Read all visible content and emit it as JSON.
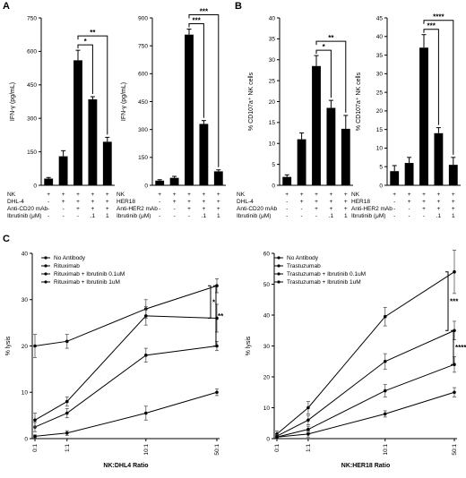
{
  "panel_labels": {
    "a": "A",
    "b": "B",
    "c": "C"
  },
  "chart_data": [
    {
      "id": "A1",
      "type": "bar",
      "ylabel": "IFN-γ (pg/mL)",
      "ylim": [
        0,
        750
      ],
      "yticks": [
        0,
        150,
        300,
        450,
        600,
        750
      ],
      "values": [
        30,
        130,
        560,
        385,
        195
      ],
      "errors": [
        5,
        25,
        45,
        12,
        20
      ],
      "conditions": [
        {
          "label": "NK",
          "marks": [
            "+",
            "+",
            "+",
            "+",
            "+"
          ]
        },
        {
          "label": "DHL-4",
          "marks": [
            "-",
            "+",
            "+",
            "+",
            "+"
          ]
        },
        {
          "label": "Anti-CD20 mAb",
          "marks": [
            "-",
            "-",
            "+",
            "+",
            "+"
          ]
        },
        {
          "label": "Ibrutinib (μM)",
          "marks": [
            "-",
            "-",
            "-",
            ".1",
            "1"
          ]
        }
      ],
      "significance": [
        {
          "from": 2,
          "to": 3,
          "text": "*"
        },
        {
          "from": 2,
          "to": 4,
          "text": "**"
        }
      ]
    },
    {
      "id": "A2",
      "type": "bar",
      "ylabel": "IFN-γ (pg/mL)",
      "ylim": [
        0,
        900
      ],
      "yticks": [
        0,
        150,
        300,
        450,
        600,
        750,
        900
      ],
      "values": [
        25,
        40,
        810,
        330,
        75
      ],
      "errors": [
        5,
        8,
        30,
        18,
        8
      ],
      "conditions": [
        {
          "label": "NK",
          "marks": [
            "+",
            "+",
            "+",
            "+",
            "+"
          ]
        },
        {
          "label": "HER18",
          "marks": [
            "-",
            "+",
            "+",
            "+",
            "+"
          ]
        },
        {
          "label": "Anti-HER2 mAb",
          "marks": [
            "-",
            "-",
            "+",
            "+",
            "+"
          ]
        },
        {
          "label": "Ibrutinib (μM)",
          "marks": [
            "-",
            "-",
            "-",
            ".1",
            "1"
          ]
        }
      ],
      "significance": [
        {
          "from": 2,
          "to": 3,
          "text": "***"
        },
        {
          "from": 2,
          "to": 4,
          "text": "***"
        }
      ]
    },
    {
      "id": "B1",
      "type": "bar",
      "ylabel": "% CD107a⁺ NK cells",
      "ylim": [
        0,
        40
      ],
      "yticks": [
        0,
        5,
        10,
        15,
        20,
        25,
        30,
        35,
        40
      ],
      "values": [
        2,
        11,
        28.5,
        18.5,
        13.5
      ],
      "errors": [
        0.5,
        1.5,
        2.5,
        1.8,
        3.2
      ],
      "conditions": [
        {
          "label": "NK",
          "marks": [
            "+",
            "+",
            "+",
            "+",
            "+"
          ]
        },
        {
          "label": "DHL-4",
          "marks": [
            "-",
            "+",
            "+",
            "+",
            "+"
          ]
        },
        {
          "label": "Anti-CD20 mAb",
          "marks": [
            "-",
            "-",
            "+",
            "+",
            "+"
          ]
        },
        {
          "label": "Ibrutinib (μM)",
          "marks": [
            "-",
            "-",
            "-",
            ".1",
            "1"
          ]
        }
      ],
      "significance": [
        {
          "from": 2,
          "to": 3,
          "text": "*"
        },
        {
          "from": 2,
          "to": 4,
          "text": "**"
        }
      ]
    },
    {
      "id": "B2",
      "type": "bar",
      "ylabel": "% CD107a⁺ NK cells",
      "ylim": [
        0,
        45
      ],
      "yticks": [
        0,
        5,
        10,
        15,
        20,
        25,
        30,
        35,
        40,
        45
      ],
      "values": [
        3.8,
        6,
        37,
        14,
        5.5
      ],
      "errors": [
        1.5,
        1.5,
        3.5,
        1.5,
        2
      ],
      "conditions": [
        {
          "label": "NK",
          "marks": [
            "+",
            "+",
            "+",
            "+",
            "+"
          ]
        },
        {
          "label": "HER18",
          "marks": [
            "-",
            "+",
            "+",
            "+",
            "+"
          ]
        },
        {
          "label": "Anti-HER2 mAb",
          "marks": [
            "-",
            "-",
            "+",
            "+",
            "+"
          ]
        },
        {
          "label": "Ibrutinib (μM)",
          "marks": [
            "-",
            "-",
            "-",
            ".1",
            "1"
          ]
        }
      ],
      "significance": [
        {
          "from": 2,
          "to": 3,
          "text": "***"
        },
        {
          "from": 2,
          "to": 4,
          "text": "****"
        }
      ]
    },
    {
      "id": "C1",
      "type": "line",
      "xlabel": "NK:DHL4 Ratio",
      "ylabel": "% lysis",
      "ylim": [
        0,
        40
      ],
      "yticks": [
        0,
        10,
        20,
        30,
        40
      ],
      "x": [
        "0:1",
        "1:1",
        "10:1",
        "50:1"
      ],
      "series": [
        {
          "name": "No Antibody",
          "values": [
            0.5,
            1.2,
            5.5,
            10
          ],
          "errors": [
            0.3,
            0.5,
            1.5,
            0.7
          ]
        },
        {
          "name": "Rituximab",
          "values": [
            20,
            21,
            28,
            33
          ],
          "errors": [
            2.5,
            1.5,
            2,
            1.5
          ]
        },
        {
          "name": "Rituximab + Ibrutinib 0.1uM",
          "values": [
            2.5,
            5.5,
            18,
            20
          ],
          "errors": [
            1,
            1,
            1.5,
            1
          ]
        },
        {
          "name": "Rituximab + Ibrutinib 1uM",
          "values": [
            4,
            8,
            26.5,
            26
          ],
          "errors": [
            1.5,
            1,
            2,
            3
          ]
        }
      ],
      "significance": [
        {
          "from": 1,
          "to": 3,
          "text": "*"
        },
        {
          "from": 1,
          "to": 2,
          "text": "**"
        }
      ]
    },
    {
      "id": "C2",
      "type": "line",
      "xlabel": "NK:HER18 Ratio",
      "ylabel": "% lysis",
      "ylim": [
        0,
        60
      ],
      "yticks": [
        0,
        10,
        20,
        30,
        40,
        50,
        60
      ],
      "x": [
        "0:1",
        "1:1",
        "10:1",
        "50:1"
      ],
      "series": [
        {
          "name": "No Antibody",
          "values": [
            0.5,
            1.5,
            8,
            15
          ],
          "errors": [
            0.3,
            1,
            1,
            1.5
          ]
        },
        {
          "name": "Trastuzumab",
          "values": [
            1.5,
            10,
            39.5,
            54
          ],
          "errors": [
            1,
            2,
            3,
            7
          ]
        },
        {
          "name": "Trastuzumab + Ibrutinib 0.1uM",
          "values": [
            0.8,
            6,
            25,
            35
          ],
          "errors": [
            0.5,
            1.5,
            2.5,
            3
          ]
        },
        {
          "name": "Trastuzumab + Ibrutinib 1uM",
          "values": [
            0.5,
            3,
            15.5,
            24
          ],
          "errors": [
            0.3,
            1,
            2,
            2.5
          ]
        }
      ],
      "significance": [
        {
          "from": 1,
          "to": 2,
          "text": "***"
        },
        {
          "from": 2,
          "to": 3,
          "text": "****"
        }
      ]
    }
  ]
}
